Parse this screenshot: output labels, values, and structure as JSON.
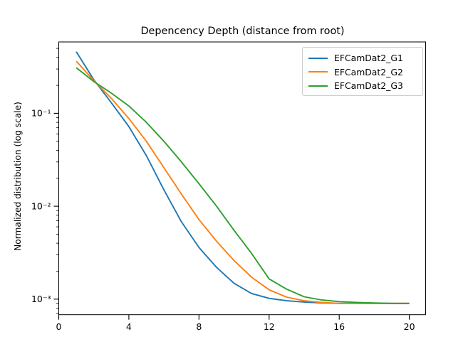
{
  "chart_data": {
    "type": "line",
    "title": "Depencency Depth (distance from root)",
    "xlabel": "",
    "ylabel": "Normalized distribution (log scale)",
    "y_scale": "log",
    "grid": false,
    "legend_position": "upper right",
    "xlim": [
      0,
      20.93
    ],
    "ylim": [
      0.00068,
      0.587
    ],
    "x_ticks": [
      0,
      4,
      8,
      12,
      16,
      20
    ],
    "y_ticks": [
      {
        "value": 0.1,
        "label": "10⁻¹"
      },
      {
        "value": 0.01,
        "label": "10⁻²"
      },
      {
        "value": 0.001,
        "label": "10⁻³"
      }
    ],
    "x": [
      1,
      2,
      3,
      4,
      5,
      6,
      7,
      8,
      9,
      10,
      11,
      12,
      13,
      14,
      15,
      16,
      17,
      18,
      19,
      20
    ],
    "series": [
      {
        "name": "EFCamDat2_G1",
        "color": "#1f77b4",
        "values": [
          0.46,
          0.23,
          0.13,
          0.072,
          0.035,
          0.015,
          0.0068,
          0.0036,
          0.0022,
          0.00148,
          0.00115,
          0.00102,
          0.00096,
          0.00093,
          0.00091,
          0.0009,
          0.0009,
          0.0009,
          0.0009,
          0.0009
        ]
      },
      {
        "name": "EFCamDat2_G2",
        "color": "#ff7f0e",
        "values": [
          0.365,
          0.225,
          0.145,
          0.088,
          0.05,
          0.026,
          0.0135,
          0.0072,
          0.0042,
          0.0026,
          0.00172,
          0.00126,
          0.00105,
          0.00096,
          0.00092,
          0.0009,
          0.0009,
          0.0009,
          0.0009,
          0.0009
        ]
      },
      {
        "name": "EFCamDat2_G3",
        "color": "#2ca02c",
        "values": [
          0.31,
          0.22,
          0.165,
          0.12,
          0.08,
          0.05,
          0.03,
          0.0175,
          0.01,
          0.0055,
          0.0031,
          0.00165,
          0.00128,
          0.00106,
          0.00098,
          0.00094,
          0.00092,
          0.00091,
          0.0009,
          0.0009
        ]
      }
    ]
  }
}
